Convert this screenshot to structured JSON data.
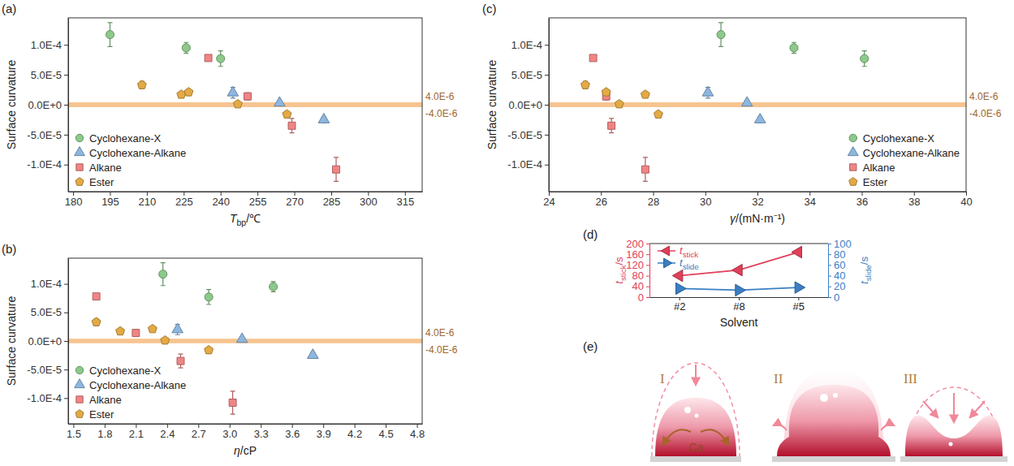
{
  "chart_data": [
    {
      "type": "scatter",
      "panel": "(a)",
      "x_label": {
        "main": "T",
        "sub": "bp",
        "rest": "/℃"
      },
      "y_label": "Surface curvature",
      "xlim": [
        178,
        322
      ],
      "xticks": [
        180,
        195,
        210,
        225,
        240,
        255,
        270,
        285,
        300,
        315
      ],
      "ylim": [
        -0.000145,
        0.000145
      ],
      "yticks": [
        {
          "value": -0.0001,
          "label": "-1.0E-4"
        },
        {
          "value": -5e-05,
          "label": "-5.0E-5"
        },
        {
          "value": 0,
          "label": "0.0E+0"
        },
        {
          "value": 5e-05,
          "label": "5.0E-5"
        },
        {
          "value": 0.0001,
          "label": "1.0E-4"
        }
      ],
      "grid": false,
      "legend": "lower left",
      "annotations": [
        {
          "value": 4e-06,
          "label": "4.0E-6"
        },
        {
          "value": -4e-06,
          "label": "-4.0E-6"
        }
      ],
      "series": [
        {
          "name": "Cyclohexane-X",
          "color": "#8cc98a",
          "marker": "circle",
          "x": [
            195,
            226,
            240
          ],
          "values": [
            0.000117,
            9.5e-05,
            7.7e-05
          ],
          "errors": [
            2e-05,
            9e-06,
            1.3e-05
          ]
        },
        {
          "name": "Cyclohexane-Alkane",
          "color": "#8db7e0",
          "marker": "triangle",
          "x": [
            245,
            264,
            282
          ],
          "values": [
            2e-05,
            3e-06,
            -2.5e-05
          ],
          "errors": [
            9e-06,
            3e-06,
            5e-06
          ]
        },
        {
          "name": "Alkane",
          "color": "#f08585",
          "marker": "square",
          "x": [
            235,
            251,
            269,
            287
          ],
          "values": [
            7.8e-05,
            1.4e-05,
            -3.5e-05,
            -0.000108
          ],
          "errors": [
            4e-06,
            6e-06,
            1.2e-05,
            2e-05
          ]
        },
        {
          "name": "Ester",
          "color": "#e3aa45",
          "marker": "pentagon",
          "x": [
            208,
            224,
            227,
            247,
            267
          ],
          "values": [
            3.3e-05,
            1.7e-05,
            2.1e-05,
            1e-06,
            -1.6e-05
          ],
          "errors": [
            6e-06,
            3e-06,
            3e-06,
            3e-06,
            4e-06
          ]
        }
      ]
    },
    {
      "type": "scatter",
      "panel": "(b)",
      "x_label": {
        "main": "η",
        "rest": "/cP"
      },
      "y_label": "Surface curvature",
      "xlim": [
        1.45,
        4.85
      ],
      "xticks": [
        1.5,
        1.8,
        2.1,
        2.4,
        2.7,
        {
          "value": 3,
          "label": "3.0"
        },
        3.3,
        3.6,
        3.9,
        4.2,
        4.5,
        4.8
      ],
      "ylim": [
        -0.000145,
        0.000145
      ],
      "yticks": [
        {
          "value": -0.0001,
          "label": "-1.0E-4"
        },
        {
          "value": -5e-05,
          "label": "-5.0E-5"
        },
        {
          "value": 0,
          "label": "0.0E+0"
        },
        {
          "value": 5e-05,
          "label": "5.0E-5"
        },
        {
          "value": 0.0001,
          "label": "1.0E-4"
        }
      ],
      "grid": false,
      "legend": "lower left",
      "annotations": [
        {
          "value": 4e-06,
          "label": "4.0E-6"
        },
        {
          "value": -4e-06,
          "label": "-4.0E-6"
        }
      ],
      "series": [
        {
          "name": "Cyclohexane-X",
          "color": "#8cc98a",
          "marker": "circle",
          "x": [
            2.36,
            3.42,
            2.8
          ],
          "values": [
            0.000117,
            9.5e-05,
            7.7e-05
          ],
          "errors": [
            2e-05,
            9e-06,
            1.3e-05
          ]
        },
        {
          "name": "Cyclohexane-Alkane",
          "color": "#8db7e0",
          "marker": "triangle",
          "x": [
            2.5,
            3.12,
            3.8
          ],
          "values": [
            2e-05,
            3e-06,
            -2.5e-05
          ],
          "errors": [
            9e-06,
            3e-06,
            5e-06
          ]
        },
        {
          "name": "Alkane",
          "color": "#f08585",
          "marker": "square",
          "x": [
            1.72,
            2.1,
            2.53,
            3.03
          ],
          "values": [
            7.8e-05,
            1.4e-05,
            -3.5e-05,
            -0.000108
          ],
          "errors": [
            4e-06,
            6e-06,
            1.2e-05,
            2e-05
          ]
        },
        {
          "name": "Ester",
          "color": "#e3aa45",
          "marker": "pentagon",
          "x": [
            1.72,
            1.95,
            2.26,
            2.38,
            2.8
          ],
          "values": [
            3.3e-05,
            1.7e-05,
            2.1e-05,
            1e-06,
            -1.6e-05
          ],
          "errors": [
            6e-06,
            3e-06,
            3e-06,
            3e-06,
            4e-06
          ]
        }
      ]
    },
    {
      "type": "scatter",
      "panel": "(c)",
      "x_label": {
        "main": "γ",
        "rest": "/(mN·m⁻¹)"
      },
      "y_label": "Surface curvature",
      "xlim": [
        24,
        40
      ],
      "xticks": [
        24,
        26,
        28,
        30,
        32,
        34,
        36,
        38,
        40
      ],
      "ylim": [
        -0.000145,
        0.000145
      ],
      "yticks": [
        {
          "value": -0.0001,
          "label": "-1.0E-4"
        },
        {
          "value": -5e-05,
          "label": "-5.0E-5"
        },
        {
          "value": 0,
          "label": "0.0E+0"
        },
        {
          "value": 5e-05,
          "label": "5.0E-5"
        },
        {
          "value": 0.0001,
          "label": "1.0E-4"
        }
      ],
      "grid": false,
      "legend": "lower right",
      "annotations": [
        {
          "value": 4e-06,
          "label": "4.0E-6"
        },
        {
          "value": -4e-06,
          "label": "-4.0E-6"
        }
      ],
      "series": [
        {
          "name": "Cyclohexane-X",
          "color": "#8cc98a",
          "marker": "circle",
          "x": [
            30.6,
            33.4,
            36.1
          ],
          "values": [
            0.000117,
            9.5e-05,
            7.7e-05
          ],
          "errors": [
            2e-05,
            9e-06,
            1.3e-05
          ]
        },
        {
          "name": "Cyclohexane-Alkane",
          "color": "#8db7e0",
          "marker": "triangle",
          "x": [
            30.1,
            31.6,
            32.1
          ],
          "values": [
            2e-05,
            3e-06,
            -2.5e-05
          ],
          "errors": [
            9e-06,
            3e-06,
            5e-06
          ]
        },
        {
          "name": "Alkane",
          "color": "#f08585",
          "marker": "square",
          "x": [
            25.7,
            26.2,
            26.4,
            27.7
          ],
          "values": [
            7.8e-05,
            1.4e-05,
            -3.5e-05,
            -0.000108
          ],
          "errors": [
            4e-06,
            6e-06,
            1.2e-05,
            2e-05
          ]
        },
        {
          "name": "Ester",
          "color": "#e3aa45",
          "marker": "pentagon",
          "x": [
            25.4,
            27.7,
            26.2,
            26.7,
            28.2
          ],
          "values": [
            3.3e-05,
            1.7e-05,
            2.1e-05,
            1e-06,
            -1.6e-05
          ],
          "errors": [
            6e-06,
            3e-06,
            3e-06,
            3e-06,
            4e-06
          ]
        }
      ]
    },
    {
      "type": "line",
      "panel": "(d)",
      "categories": [
        "#2",
        "#8",
        "#5"
      ],
      "x_label": "Solvent",
      "y_label": {
        "main": "t",
        "sub": "stick",
        "rest": "/s"
      },
      "y2_label": {
        "main": "t",
        "sub": "slide",
        "rest": "/s"
      },
      "ylim": [
        0,
        200
      ],
      "yticks": [
        0,
        40,
        80,
        120,
        160,
        200
      ],
      "y2lim": [
        0,
        100
      ],
      "y2ticks": [
        0,
        20,
        40,
        60,
        80,
        100
      ],
      "grid": false,
      "legend": "upper left",
      "series": [
        {
          "name": {
            "main": "t",
            "sub": "stick"
          },
          "color": "#e0405a",
          "marker": "triangle-left",
          "line_style": "solid",
          "values": [
            80,
            101,
            168
          ]
        },
        {
          "name": {
            "main": "t",
            "sub": "slide"
          },
          "color": "#3a7fc4",
          "marker": "triangle-right",
          "line_style": "solid",
          "axis": "y2",
          "values": [
            16,
            13,
            18
          ]
        }
      ]
    }
  ],
  "diagram": {
    "panel": "(e)",
    "stages": [
      "I",
      "II",
      "III"
    ],
    "label": "Ca"
  }
}
